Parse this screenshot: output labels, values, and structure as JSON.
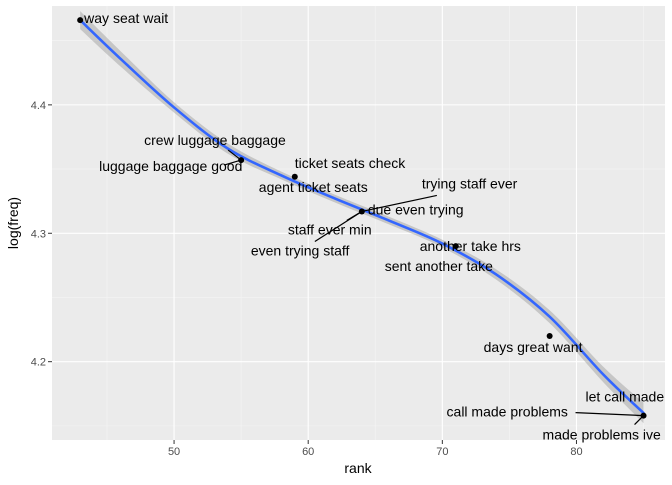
{
  "chart_data": {
    "type": "scatter",
    "title": "",
    "xlabel": "rank",
    "ylabel": "log(freq)",
    "xlim": [
      40.9,
      86.6
    ],
    "ylim": [
      4.139,
      4.477
    ],
    "x_ticks": [
      50,
      60,
      70,
      80
    ],
    "y_ticks": [
      4.2,
      4.3,
      4.4
    ],
    "x_tick_labels": [
      "50",
      "60",
      "70",
      "80"
    ],
    "y_tick_labels": [
      "4.2",
      "4.3",
      "4.4"
    ],
    "grid": true,
    "smoother": {
      "method": "loess",
      "color": "#3366FF",
      "band_color": "#999999",
      "curve": [
        {
          "x": 43,
          "y": 4.466
        },
        {
          "x": 46,
          "y": 4.436
        },
        {
          "x": 50,
          "y": 4.398
        },
        {
          "x": 54,
          "y": 4.366
        },
        {
          "x": 58,
          "y": 4.345
        },
        {
          "x": 62,
          "y": 4.327
        },
        {
          "x": 66,
          "y": 4.31
        },
        {
          "x": 70,
          "y": 4.292
        },
        {
          "x": 74,
          "y": 4.268
        },
        {
          "x": 78,
          "y": 4.235
        },
        {
          "x": 82,
          "y": 4.19
        },
        {
          "x": 85,
          "y": 4.16
        }
      ],
      "band_halfwidth": [
        0.007,
        0.006,
        0.004,
        0.004,
        0.003,
        0.003,
        0.003,
        0.003,
        0.004,
        0.005,
        0.006,
        0.008
      ]
    },
    "points": [
      {
        "x": 43,
        "y": 4.466,
        "label": "way seat wait"
      },
      {
        "x": 55,
        "y": 4.357,
        "label": "crew luggage baggage"
      },
      {
        "x": 55,
        "y": 4.357,
        "label": "luggage baggage good"
      },
      {
        "x": 59,
        "y": 4.344,
        "label": "ticket seats check"
      },
      {
        "x": 59,
        "y": 4.344,
        "label": "agent ticket seats"
      },
      {
        "x": 64,
        "y": 4.317,
        "label": "trying staff ever"
      },
      {
        "x": 64,
        "y": 4.317,
        "label": "due even trying"
      },
      {
        "x": 64,
        "y": 4.317,
        "label": "staff ever min"
      },
      {
        "x": 64,
        "y": 4.317,
        "label": "even trying staff"
      },
      {
        "x": 71,
        "y": 4.29,
        "label": "another take hrs"
      },
      {
        "x": 71,
        "y": 4.29,
        "label": "sent another take"
      },
      {
        "x": 78,
        "y": 4.22,
        "label": "days great want"
      },
      {
        "x": 85,
        "y": 4.158,
        "label": "let call made"
      },
      {
        "x": 85,
        "y": 4.158,
        "label": "call made problems"
      },
      {
        "x": 85,
        "y": 4.158,
        "label": "made problems ive"
      }
    ]
  }
}
